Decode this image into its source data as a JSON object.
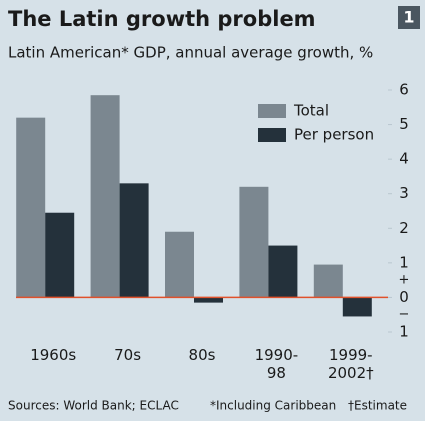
{
  "chart_data": {
    "type": "bar",
    "title": "The Latin growth problem",
    "chart_number": "1",
    "subtitle": "Latin American* GDP, annual average growth, %",
    "categories": [
      "1960s",
      "70s",
      "80s",
      "1990-\n98",
      "1999-\n2002†"
    ],
    "series": [
      {
        "name": "Total",
        "color": "#7b8790",
        "values": [
          5.2,
          5.85,
          1.9,
          3.2,
          0.95
        ]
      },
      {
        "name": "Per person",
        "color": "#24313b",
        "values": [
          2.45,
          3.3,
          -0.15,
          1.5,
          -0.55
        ]
      }
    ],
    "ylim": [
      -1,
      6
    ],
    "yticks": [
      {
        "value": -1,
        "label": "1"
      },
      0,
      1,
      2,
      3,
      4,
      5,
      6
    ],
    "y_sign_plus": "+",
    "y_sign_minus": "−",
    "grid": false,
    "legend": "top-right",
    "source": "Sources: World Bank; ECLAC",
    "footnotes": [
      "*Including Caribbean",
      "†Estimate"
    ]
  }
}
